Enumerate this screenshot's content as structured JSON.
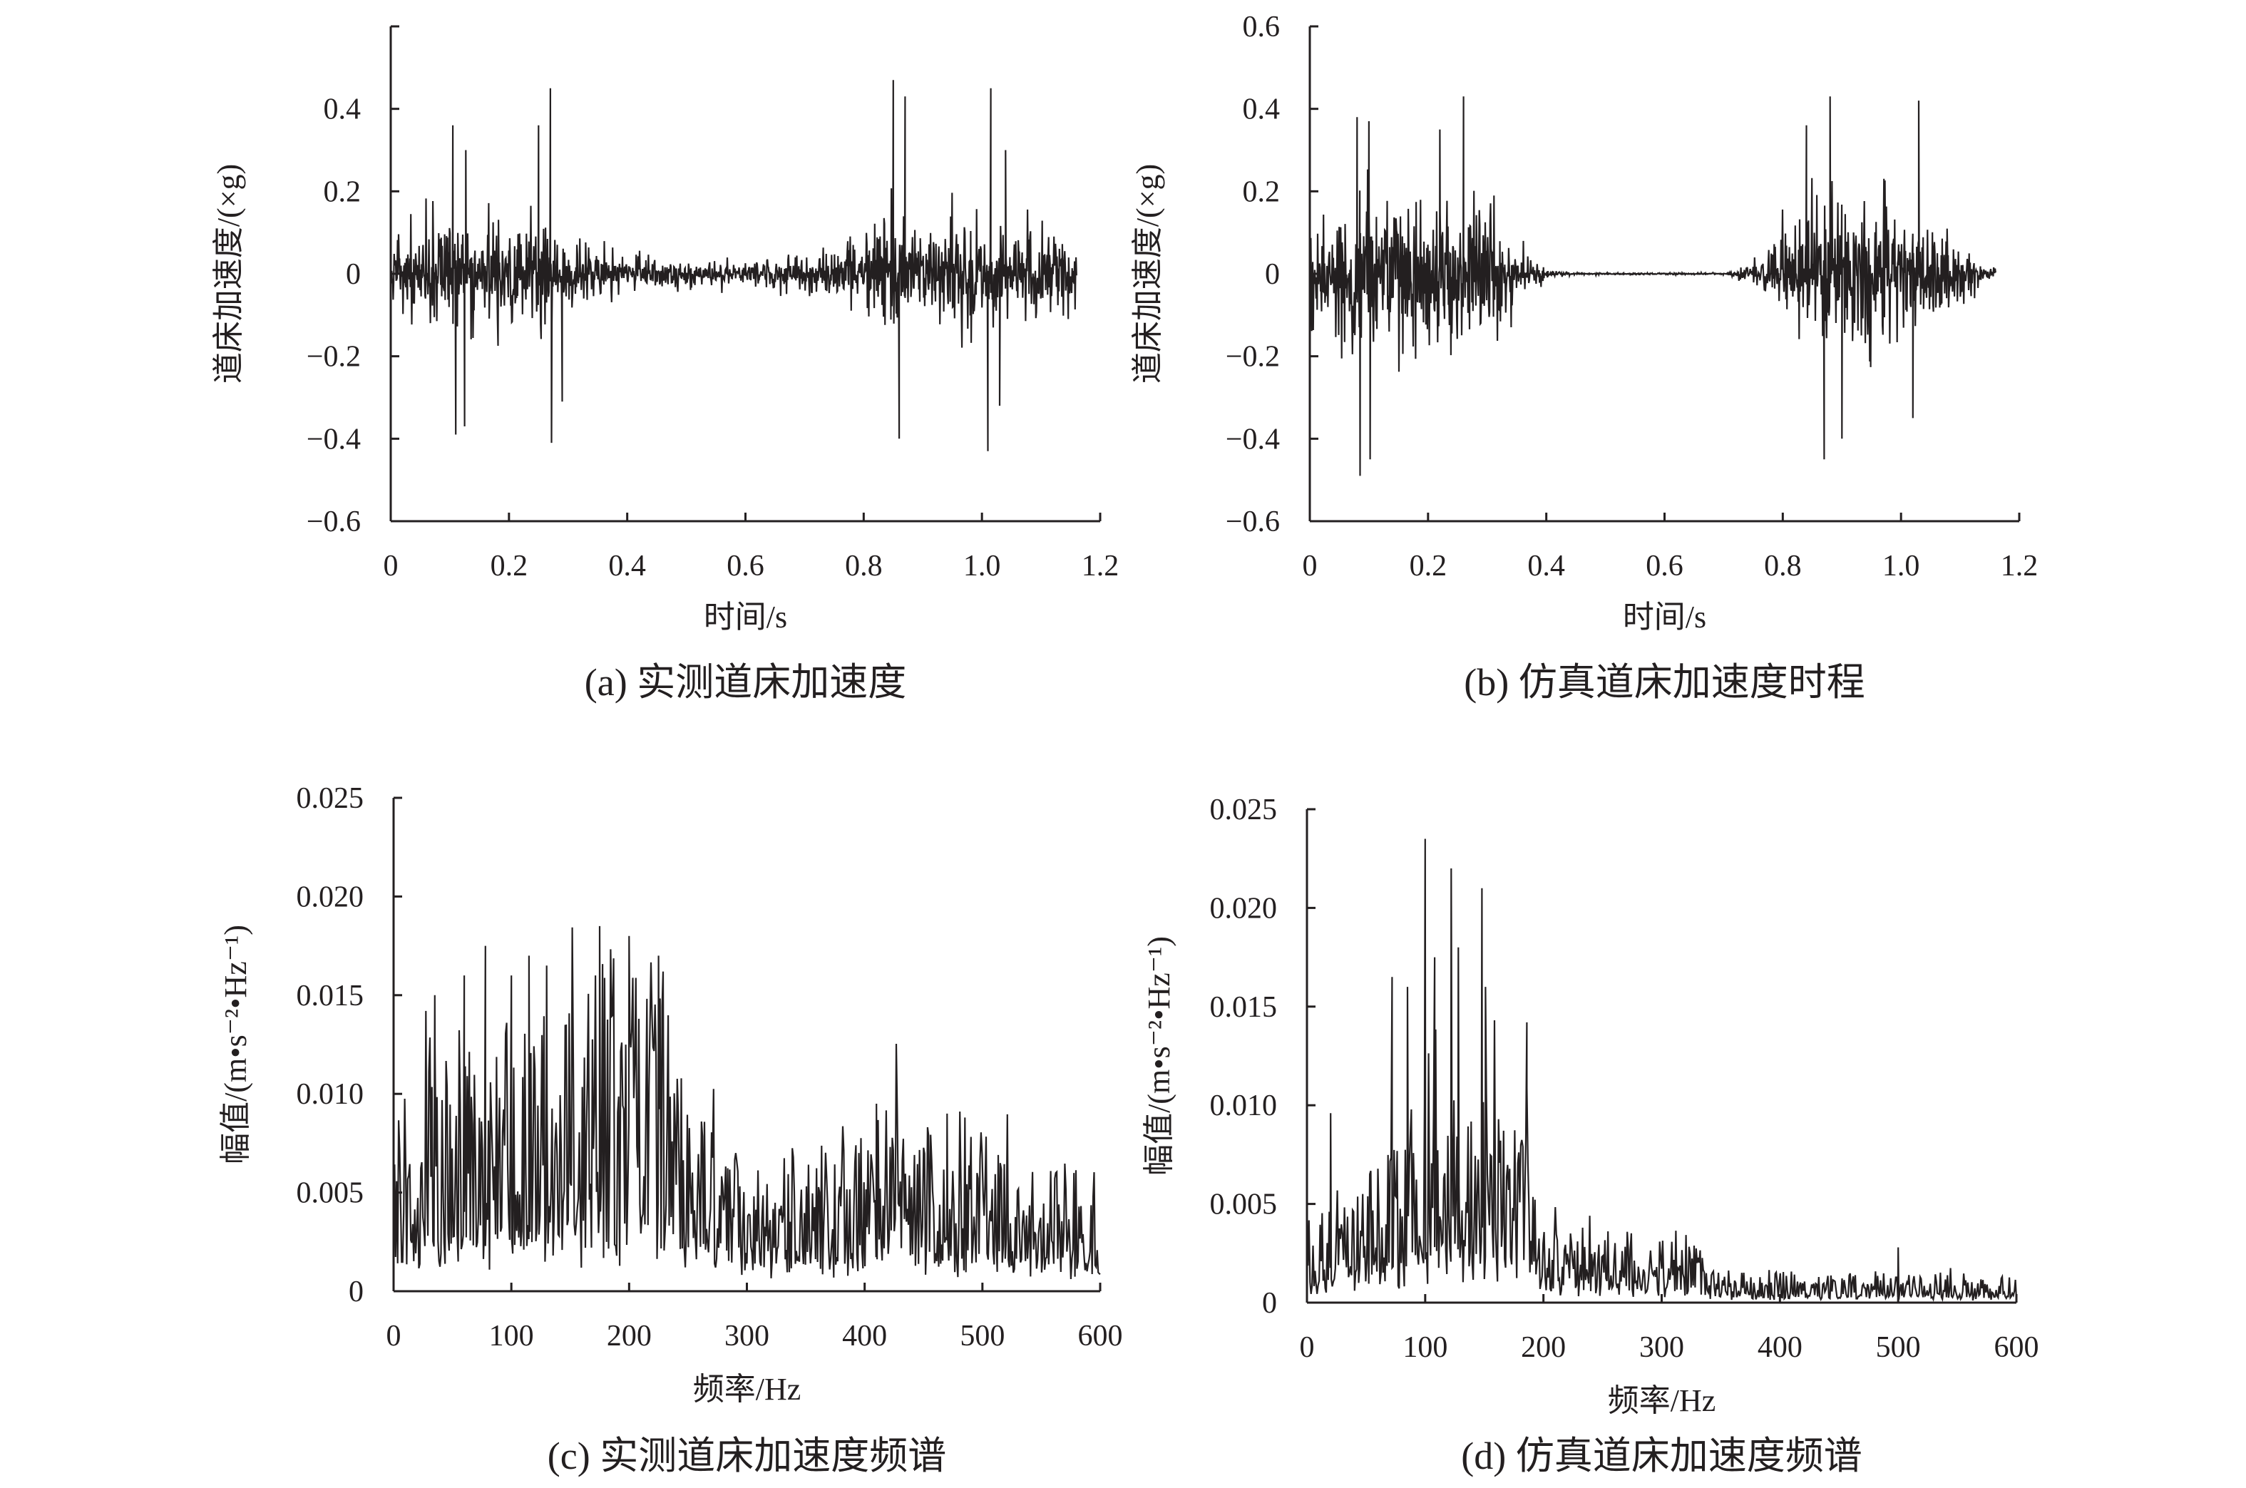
{
  "chart_data": [
    {
      "id": "a",
      "type": "line",
      "caption": "(a) 实测道床加速度",
      "xlabel": "时间/s",
      "ylabel": "道床加速度/(×g)",
      "xlim": [
        0,
        1.2
      ],
      "ylim": [
        -0.6,
        0.6
      ],
      "xticks": [
        "0",
        "0.2",
        "0.4",
        "0.6",
        "0.8",
        "1.0",
        "1.2"
      ],
      "yticks": [
        "",
        "0.4",
        "0.2",
        "0",
        "−0.2",
        "−0.4",
        "−0.6"
      ],
      "x_range": [
        0,
        1.16
      ],
      "envelope": [
        [
          0,
          0.08
        ],
        [
          0.1,
          0.12
        ],
        [
          0.25,
          0.12
        ],
        [
          0.3,
          0.08
        ],
        [
          0.4,
          0.04
        ],
        [
          0.6,
          0.025
        ],
        [
          0.75,
          0.05
        ],
        [
          0.85,
          0.13
        ],
        [
          1.0,
          0.12
        ],
        [
          1.16,
          0.07
        ]
      ],
      "peaks": [
        [
          0.105,
          0.36
        ],
        [
          0.11,
          -0.39
        ],
        [
          0.125,
          -0.37
        ],
        [
          0.127,
          0.3
        ],
        [
          0.25,
          0.36
        ],
        [
          0.27,
          0.45
        ],
        [
          0.272,
          -0.41
        ],
        [
          0.29,
          -0.31
        ],
        [
          0.85,
          0.47
        ],
        [
          0.86,
          -0.4
        ],
        [
          0.87,
          0.43
        ],
        [
          1.01,
          -0.43
        ],
        [
          1.015,
          0.45
        ],
        [
          1.03,
          -0.32
        ],
        [
          1.04,
          0.3
        ]
      ],
      "color": "#231f20"
    },
    {
      "id": "b",
      "type": "line",
      "caption": "(b) 仿真道床加速度时程",
      "xlabel": "时间/s",
      "ylabel": "道床加速度/(×g)",
      "xlim": [
        0,
        1.2
      ],
      "ylim": [
        -0.6,
        0.6
      ],
      "xticks": [
        "0",
        "0.2",
        "0.4",
        "0.6",
        "0.8",
        "1.0",
        "1.2"
      ],
      "yticks": [
        "0.6",
        "0.4",
        "0.2",
        "0",
        "−0.2",
        "−0.4",
        "−0.6"
      ],
      "x_range": [
        0,
        1.16
      ],
      "envelope": [
        [
          0,
          0.1
        ],
        [
          0.08,
          0.2
        ],
        [
          0.15,
          0.15
        ],
        [
          0.25,
          0.18
        ],
        [
          0.33,
          0.12
        ],
        [
          0.36,
          0.05
        ],
        [
          0.4,
          0.01
        ],
        [
          0.45,
          0.002
        ],
        [
          0.7,
          0.002
        ],
        [
          0.76,
          0.03
        ],
        [
          0.8,
          0.12
        ],
        [
          0.9,
          0.17
        ],
        [
          1.0,
          0.16
        ],
        [
          1.1,
          0.08
        ],
        [
          1.14,
          0.02
        ],
        [
          1.16,
          0.01
        ]
      ],
      "peaks": [
        [
          0.08,
          0.38
        ],
        [
          0.085,
          -0.49
        ],
        [
          0.1,
          0.37
        ],
        [
          0.102,
          -0.45
        ],
        [
          0.26,
          0.43
        ],
        [
          0.22,
          0.35
        ],
        [
          0.88,
          0.43
        ],
        [
          0.87,
          -0.45
        ],
        [
          0.9,
          -0.4
        ],
        [
          1.03,
          0.42
        ],
        [
          1.02,
          -0.35
        ],
        [
          0.84,
          0.36
        ]
      ],
      "color": "#231f20"
    },
    {
      "id": "c",
      "type": "line",
      "caption": "(c) 实测道床加速度频谱",
      "xlabel": "频率/Hz",
      "ylabel": "幅值/(m•s⁻²•Hz⁻¹)",
      "xlim": [
        0,
        600
      ],
      "ylim": [
        0,
        0.025
      ],
      "xticks": [
        "0",
        "100",
        "200",
        "300",
        "400",
        "500",
        "600"
      ],
      "yticks": [
        "0.025",
        "0.020",
        "0.015",
        "0.010",
        "0.005",
        "0"
      ],
      "x_range": [
        0,
        600
      ],
      "envelope": [
        [
          0,
          0.004
        ],
        [
          30,
          0.006
        ],
        [
          100,
          0.007
        ],
        [
          230,
          0.008
        ],
        [
          250,
          0.005
        ],
        [
          300,
          0.003
        ],
        [
          400,
          0.004
        ],
        [
          420,
          0.005
        ],
        [
          500,
          0.004
        ],
        [
          600,
          0.003
        ]
      ],
      "peaks": [
        [
          35,
          0.015
        ],
        [
          60,
          0.016
        ],
        [
          78,
          0.0175
        ],
        [
          100,
          0.016
        ],
        [
          115,
          0.017
        ],
        [
          130,
          0.0165
        ],
        [
          175,
          0.0185
        ],
        [
          200,
          0.018
        ],
        [
          225,
          0.017
        ],
        [
          410,
          0.0095
        ],
        [
          470,
          0.009
        ]
      ],
      "color": "#231f20"
    },
    {
      "id": "d",
      "type": "line",
      "caption": "(d) 仿真道床加速度频谱",
      "xlabel": "频率/Hz",
      "ylabel": "幅值/(m•s⁻²•Hz⁻¹)",
      "xlim": [
        0,
        600
      ],
      "ylim": [
        0,
        0.025
      ],
      "xticks": [
        "0",
        "100",
        "200",
        "300",
        "400",
        "500",
        "600"
      ],
      "yticks": [
        "0.025",
        "0.020",
        "0.015",
        "0.010",
        "0.005",
        "0"
      ],
      "x_range": [
        0,
        600
      ],
      "envelope": [
        [
          0,
          0.002
        ],
        [
          70,
          0.004
        ],
        [
          100,
          0.006
        ],
        [
          150,
          0.006
        ],
        [
          195,
          0.004
        ],
        [
          200,
          0.002
        ],
        [
          330,
          0.0015
        ],
        [
          340,
          0.0008
        ],
        [
          600,
          0.0007
        ]
      ],
      "peaks": [
        [
          20,
          0.0096
        ],
        [
          72,
          0.0165
        ],
        [
          85,
          0.016
        ],
        [
          100,
          0.0235
        ],
        [
          108,
          0.0175
        ],
        [
          122,
          0.022
        ],
        [
          128,
          0.018
        ],
        [
          148,
          0.021
        ],
        [
          151,
          0.016
        ],
        [
          186,
          0.0142
        ],
        [
          500,
          0.0028
        ]
      ],
      "color": "#231f20"
    }
  ]
}
